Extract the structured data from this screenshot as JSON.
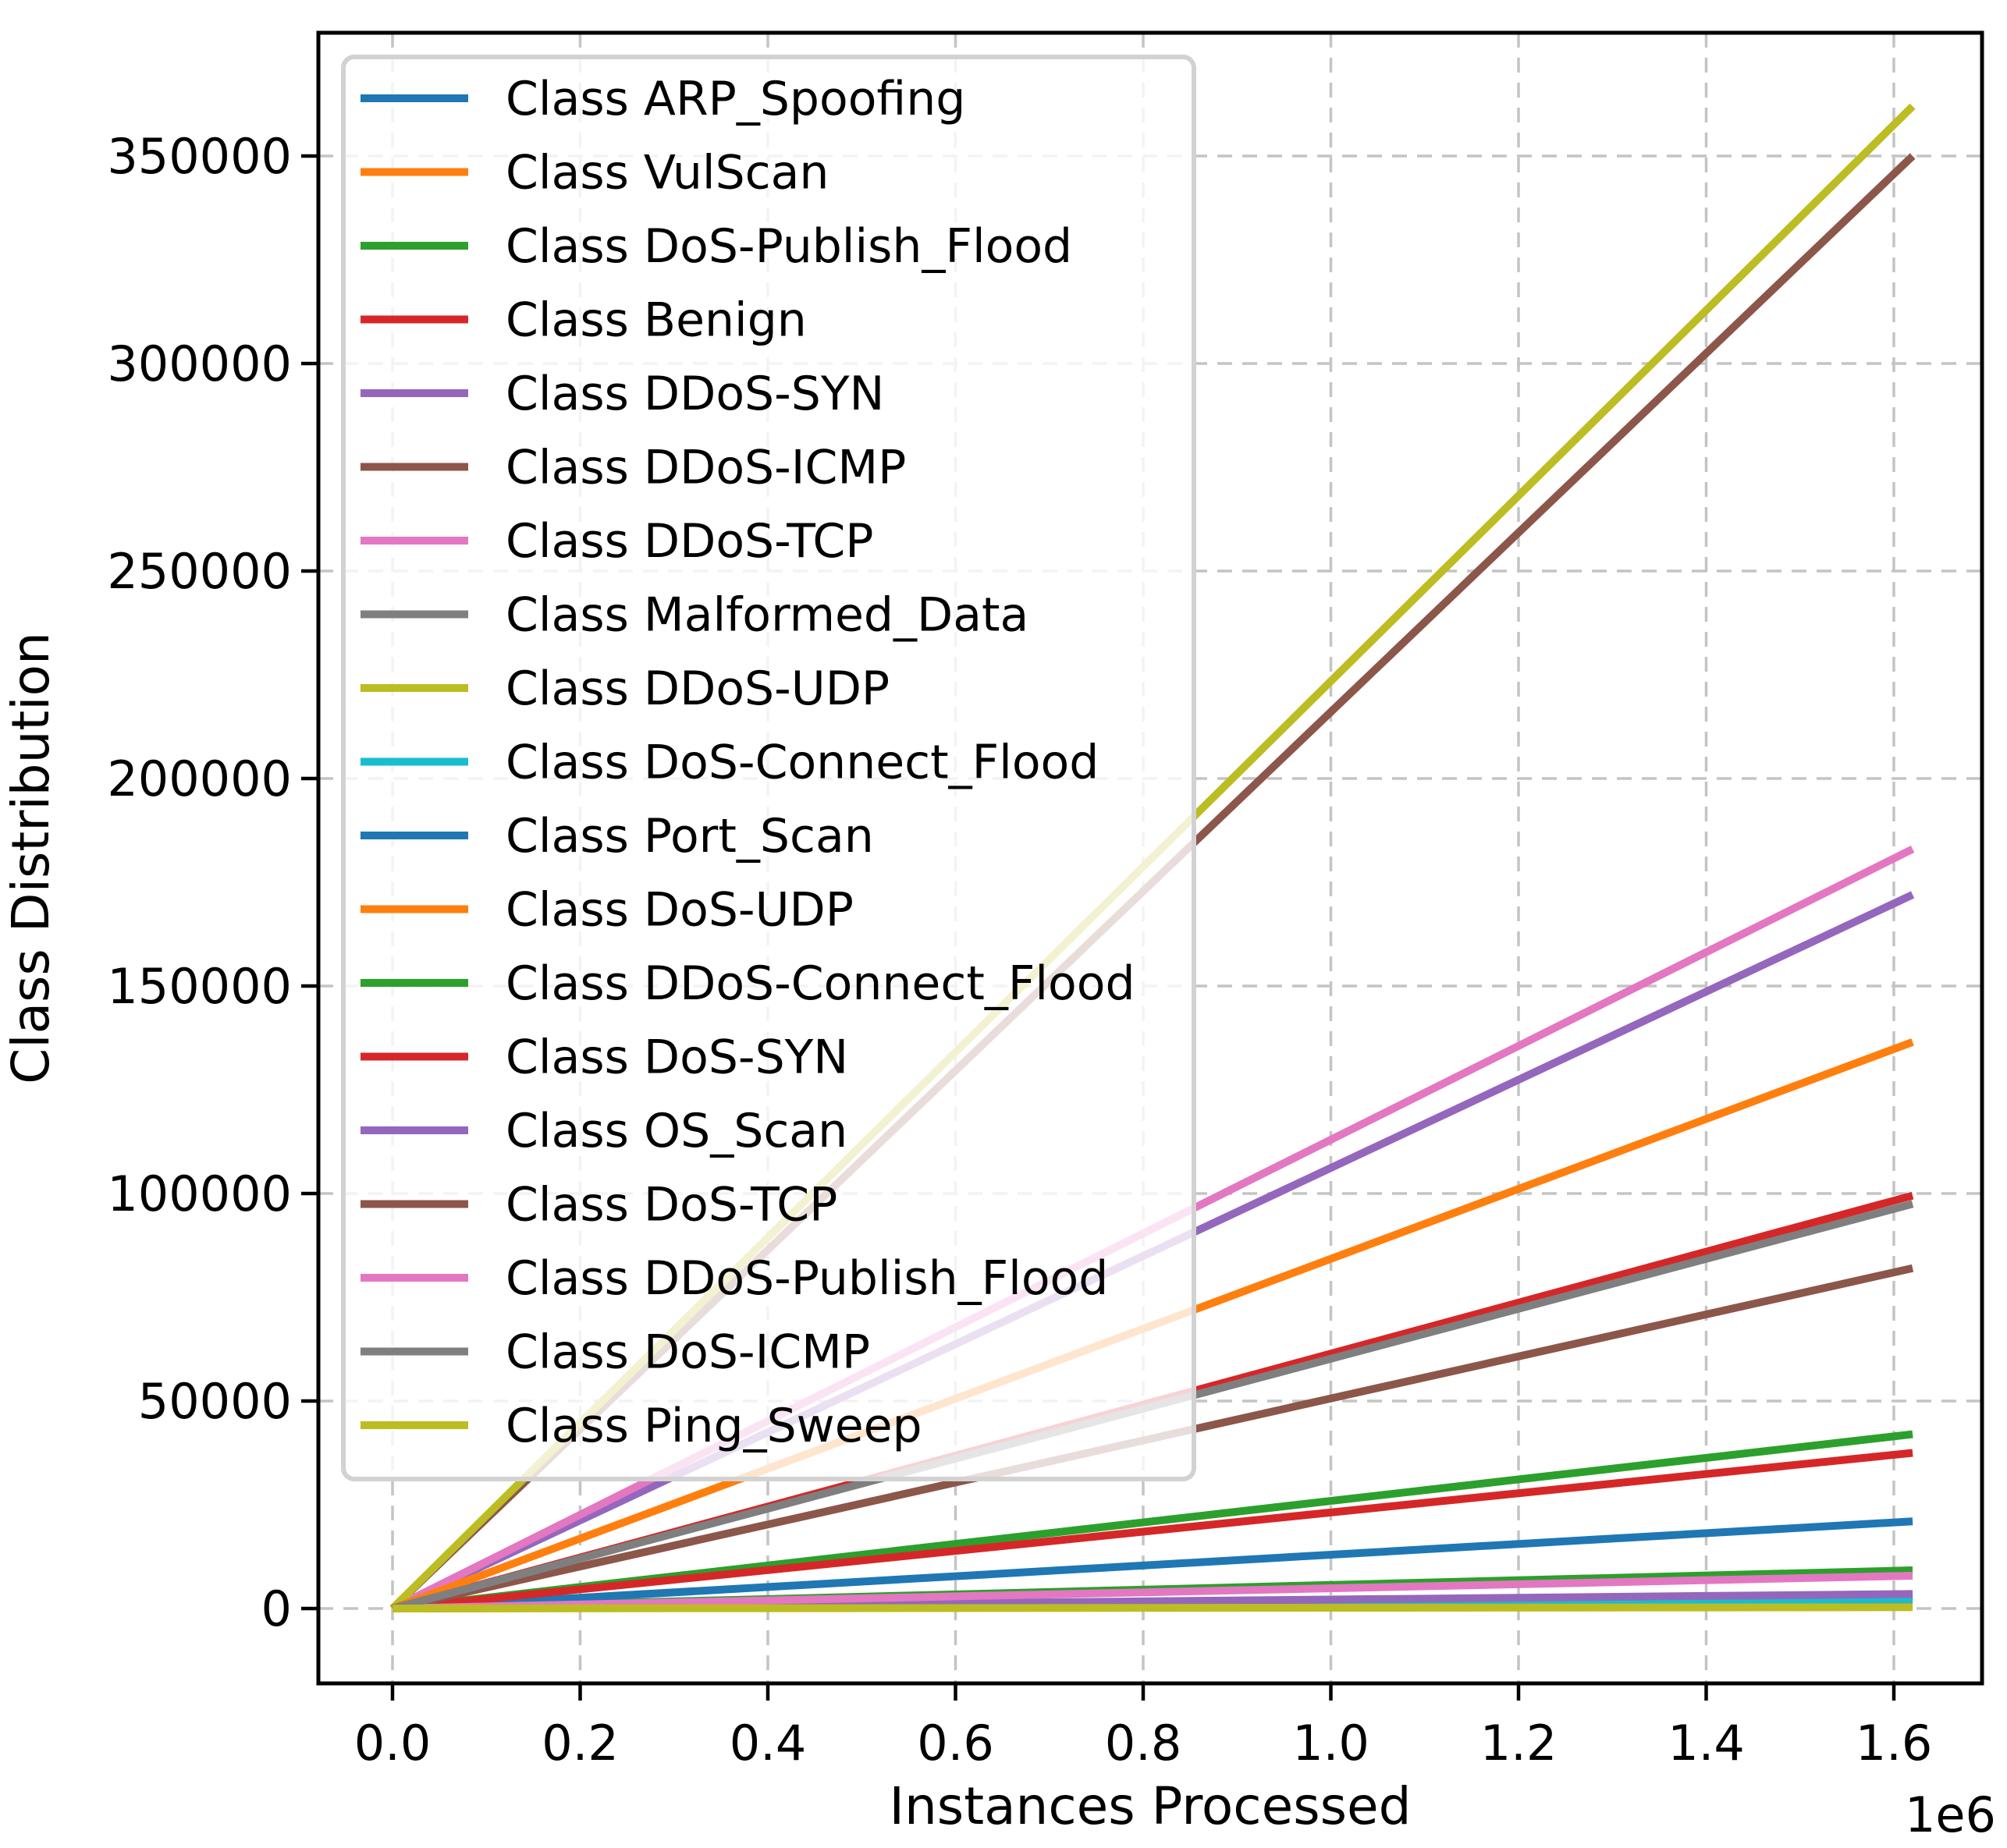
{
  "figure": {
    "background": "#ffffff",
    "grid_color": "#c4c4c4",
    "spine_color": "#000000",
    "legend_border_color": "#d2d2d2"
  },
  "chart_data": {
    "type": "line",
    "title": "",
    "xlabel": "Instances Processed",
    "ylabel": "Class Distribution",
    "x_offset_label": "1e6",
    "grid": true,
    "legend_position": "upper left",
    "x_tick_values": [
      0,
      200000,
      400000,
      600000,
      800000,
      1000000,
      1200000,
      1400000,
      1600000
    ],
    "x_tick_labels": [
      "0.0",
      "0.2",
      "0.4",
      "0.6",
      "0.8",
      "1.0",
      "1.2",
      "1.4",
      "1.6"
    ],
    "y_tick_values": [
      0,
      50000,
      100000,
      150000,
      200000,
      250000,
      300000,
      350000
    ],
    "y_tick_labels": [
      "0",
      "50000",
      "100000",
      "150000",
      "200000",
      "250000",
      "300000",
      "350000"
    ],
    "xlim": [
      -79000,
      1694000
    ],
    "ylim": [
      -18000,
      379700
    ],
    "x_end": 1620000,
    "series": [
      {
        "label": "Class ARP_Spoofing",
        "color": "#1f77b4",
        "values": [
          [
            0,
            0
          ],
          [
            1620000,
            3000
          ]
        ]
      },
      {
        "label": "Class VulScan",
        "color": "#ff7f0e",
        "values": [
          [
            0,
            0
          ],
          [
            1620000,
            1000
          ]
        ]
      },
      {
        "label": "Class DoS-Publish_Flood",
        "color": "#2ca02c",
        "values": [
          [
            0,
            0
          ],
          [
            1620000,
            9200
          ]
        ]
      },
      {
        "label": "Class Benign",
        "color": "#d62728",
        "values": [
          [
            0,
            0
          ],
          [
            1620000,
            99500
          ]
        ]
      },
      {
        "label": "Class DDoS-SYN",
        "color": "#9467bd",
        "values": [
          [
            0,
            0
          ],
          [
            1620000,
            172000
          ]
        ]
      },
      {
        "label": "Class DDoS-ICMP",
        "color": "#8c564b",
        "values": [
          [
            0,
            0
          ],
          [
            1620000,
            350000
          ]
        ]
      },
      {
        "label": "Class DDoS-TCP",
        "color": "#e377c2",
        "values": [
          [
            0,
            0
          ],
          [
            1620000,
            183000
          ]
        ]
      },
      {
        "label": "Class Malformed_Data",
        "color": "#7f7f7f",
        "values": [
          [
            0,
            0
          ],
          [
            1620000,
            1500
          ]
        ]
      },
      {
        "label": "Class DDoS-UDP",
        "color": "#bcbd22",
        "values": [
          [
            0,
            0
          ],
          [
            1620000,
            362000
          ]
        ]
      },
      {
        "label": "Class DoS-Connect_Flood",
        "color": "#17becf",
        "values": [
          [
            0,
            0
          ],
          [
            1620000,
            2300
          ]
        ]
      },
      {
        "label": "Class Port_Scan",
        "color": "#1f77b4",
        "values": [
          [
            0,
            0
          ],
          [
            1620000,
            21000
          ]
        ]
      },
      {
        "label": "Class DoS-UDP",
        "color": "#ff7f0e",
        "values": [
          [
            0,
            0
          ],
          [
            1620000,
            136500
          ]
        ]
      },
      {
        "label": "Class DDoS-Connect_Flood",
        "color": "#2ca02c",
        "values": [
          [
            0,
            0
          ],
          [
            1620000,
            42000
          ]
        ]
      },
      {
        "label": "Class DoS-SYN",
        "color": "#d62728",
        "values": [
          [
            0,
            0
          ],
          [
            1620000,
            37500
          ]
        ]
      },
      {
        "label": "Class OS_Scan",
        "color": "#9467bd",
        "values": [
          [
            0,
            0
          ],
          [
            1620000,
            3500
          ]
        ]
      },
      {
        "label": "Class DoS-TCP",
        "color": "#8c564b",
        "values": [
          [
            0,
            0
          ],
          [
            1620000,
            82000
          ]
        ]
      },
      {
        "label": "Class DDoS-Publish_Flood",
        "color": "#e377c2",
        "values": [
          [
            0,
            0
          ],
          [
            1620000,
            7900
          ]
        ]
      },
      {
        "label": "Class DoS-ICMP",
        "color": "#7f7f7f",
        "values": [
          [
            0,
            0
          ],
          [
            1620000,
            97500
          ]
        ]
      },
      {
        "label": "Class Ping_Sweep",
        "color": "#bcbd22",
        "values": [
          [
            0,
            0
          ],
          [
            1620000,
            300
          ]
        ]
      }
    ]
  }
}
